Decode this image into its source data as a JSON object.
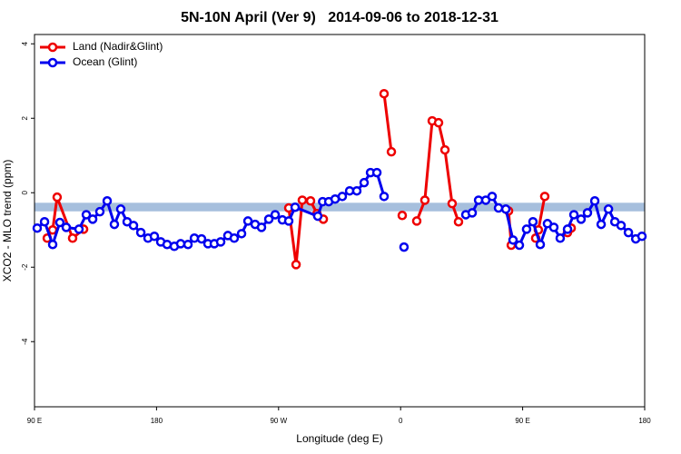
{
  "chart_data": {
    "type": "line",
    "title": "5N-10N April (Ver 9)   2014-09-06 to 2018-12-31",
    "x_label": "Longitude (deg E)",
    "y_label": "XCO2 - MLO trend (ppm)",
    "xlim": [
      -270,
      180
    ],
    "ylim": [
      -5.75,
      4.25
    ],
    "xticks": [
      {
        "value": -270,
        "label": "90 E"
      },
      {
        "value": -180,
        "label": "180"
      },
      {
        "value": -90,
        "label": "90 W"
      },
      0,
      {
        "value": 90,
        "label": "90 E"
      },
      {
        "value": 180,
        "label": "180"
      }
    ],
    "yticks": [
      -4,
      -2,
      0,
      2,
      4
    ],
    "band": {
      "range": [
        -0.5,
        -0.27
      ],
      "color": "#a6bfdd"
    },
    "legend": "top-left",
    "series": [
      {
        "name": "Land (Nadir&Glint)",
        "color": "#ee0000",
        "x": [
          -260.6,
          -256.6,
          -253.3,
          -241.9,
          -233.8,
          null,
          -82.5,
          -77.1,
          -72.5,
          -66.4,
          -61.7,
          -57,
          null,
          -12.2,
          -6.8,
          null,
          1.2,
          null,
          11.9,
          17.9,
          23.3,
          28,
          32.7,
          38,
          42.7,
          null,
          79.6,
          81.6,
          null,
          99.6,
          101.6,
          106.3,
          null,
          123.1,
          125.8
        ],
        "values": [
          -1.22,
          -1.0,
          -0.12,
          -1.22,
          -0.98,
          null,
          -0.41,
          -1.93,
          -0.2,
          -0.22,
          -0.56,
          -0.71,
          null,
          2.66,
          1.1,
          null,
          -0.61,
          null,
          -0.76,
          -0.2,
          1.93,
          1.88,
          1.15,
          -0.29,
          -0.78,
          null,
          -0.49,
          -1.41,
          null,
          -1.22,
          -1.0,
          -0.1,
          null,
          -1.07,
          -0.95
        ]
      },
      {
        "name": "Ocean (Glint)",
        "color": "#0000ee",
        "x": [
          -268,
          -262.6,
          -256.6,
          -251.3,
          -246.6,
          -237.2,
          -231.8,
          -227.1,
          -221.8,
          -216.4,
          -211.1,
          -206.4,
          -201.7,
          -197,
          -191.6,
          -186.3,
          -181.6,
          -176.9,
          -172.2,
          -166.9,
          -162.2,
          -156.8,
          -152.1,
          -146.8,
          -142.1,
          -137.4,
          -132.7,
          -127.4,
          -122.7,
          -117.3,
          -112.6,
          -107.3,
          -102.6,
          -97.2,
          -92.5,
          -87.2,
          -82.5,
          -77.8,
          -61.1,
          -57.5,
          -53,
          -48.3,
          -43,
          -37.6,
          -32.3,
          -26.9,
          -22.2,
          -17.5,
          -12.2,
          null,
          2.5,
          null,
          48.1,
          52.8,
          57.5,
          62.8,
          67.5,
          72.2,
          77.6,
          82.9,
          87.6,
          92.9,
          97.6,
          103,
          108.3,
          113,
          117.7,
          123.1,
          127.8,
          133.1,
          137.8,
          143.2,
          147.9,
          153.3,
          158,
          162.6,
          168,
          173.4,
          178
        ],
        "values": [
          -0.95,
          -0.78,
          -1.39,
          -0.8,
          -0.93,
          -0.98,
          -0.59,
          -0.71,
          -0.51,
          -0.22,
          -0.85,
          -0.44,
          -0.78,
          -0.88,
          -1.07,
          -1.22,
          -1.17,
          -1.32,
          -1.39,
          -1.44,
          -1.37,
          -1.39,
          -1.22,
          -1.24,
          -1.37,
          -1.37,
          -1.32,
          -1.15,
          -1.22,
          -1.1,
          -0.76,
          -0.85,
          -0.93,
          -0.71,
          -0.59,
          -0.73,
          -0.76,
          -0.39,
          -0.63,
          -0.24,
          -0.24,
          -0.17,
          -0.1,
          0.05,
          0.05,
          0.27,
          0.54,
          0.54,
          -0.1,
          null,
          -1.46,
          null,
          -0.59,
          -0.54,
          -0.2,
          -0.2,
          -0.1,
          -0.41,
          -0.44,
          -1.27,
          -1.41,
          -0.98,
          -0.78,
          -1.39,
          -0.83,
          -0.93,
          -1.22,
          -0.98,
          -0.59,
          -0.71,
          -0.54,
          -0.22,
          -0.85,
          -0.44,
          -0.78,
          -0.88,
          -1.07,
          -1.24,
          -1.17
        ]
      }
    ]
  }
}
